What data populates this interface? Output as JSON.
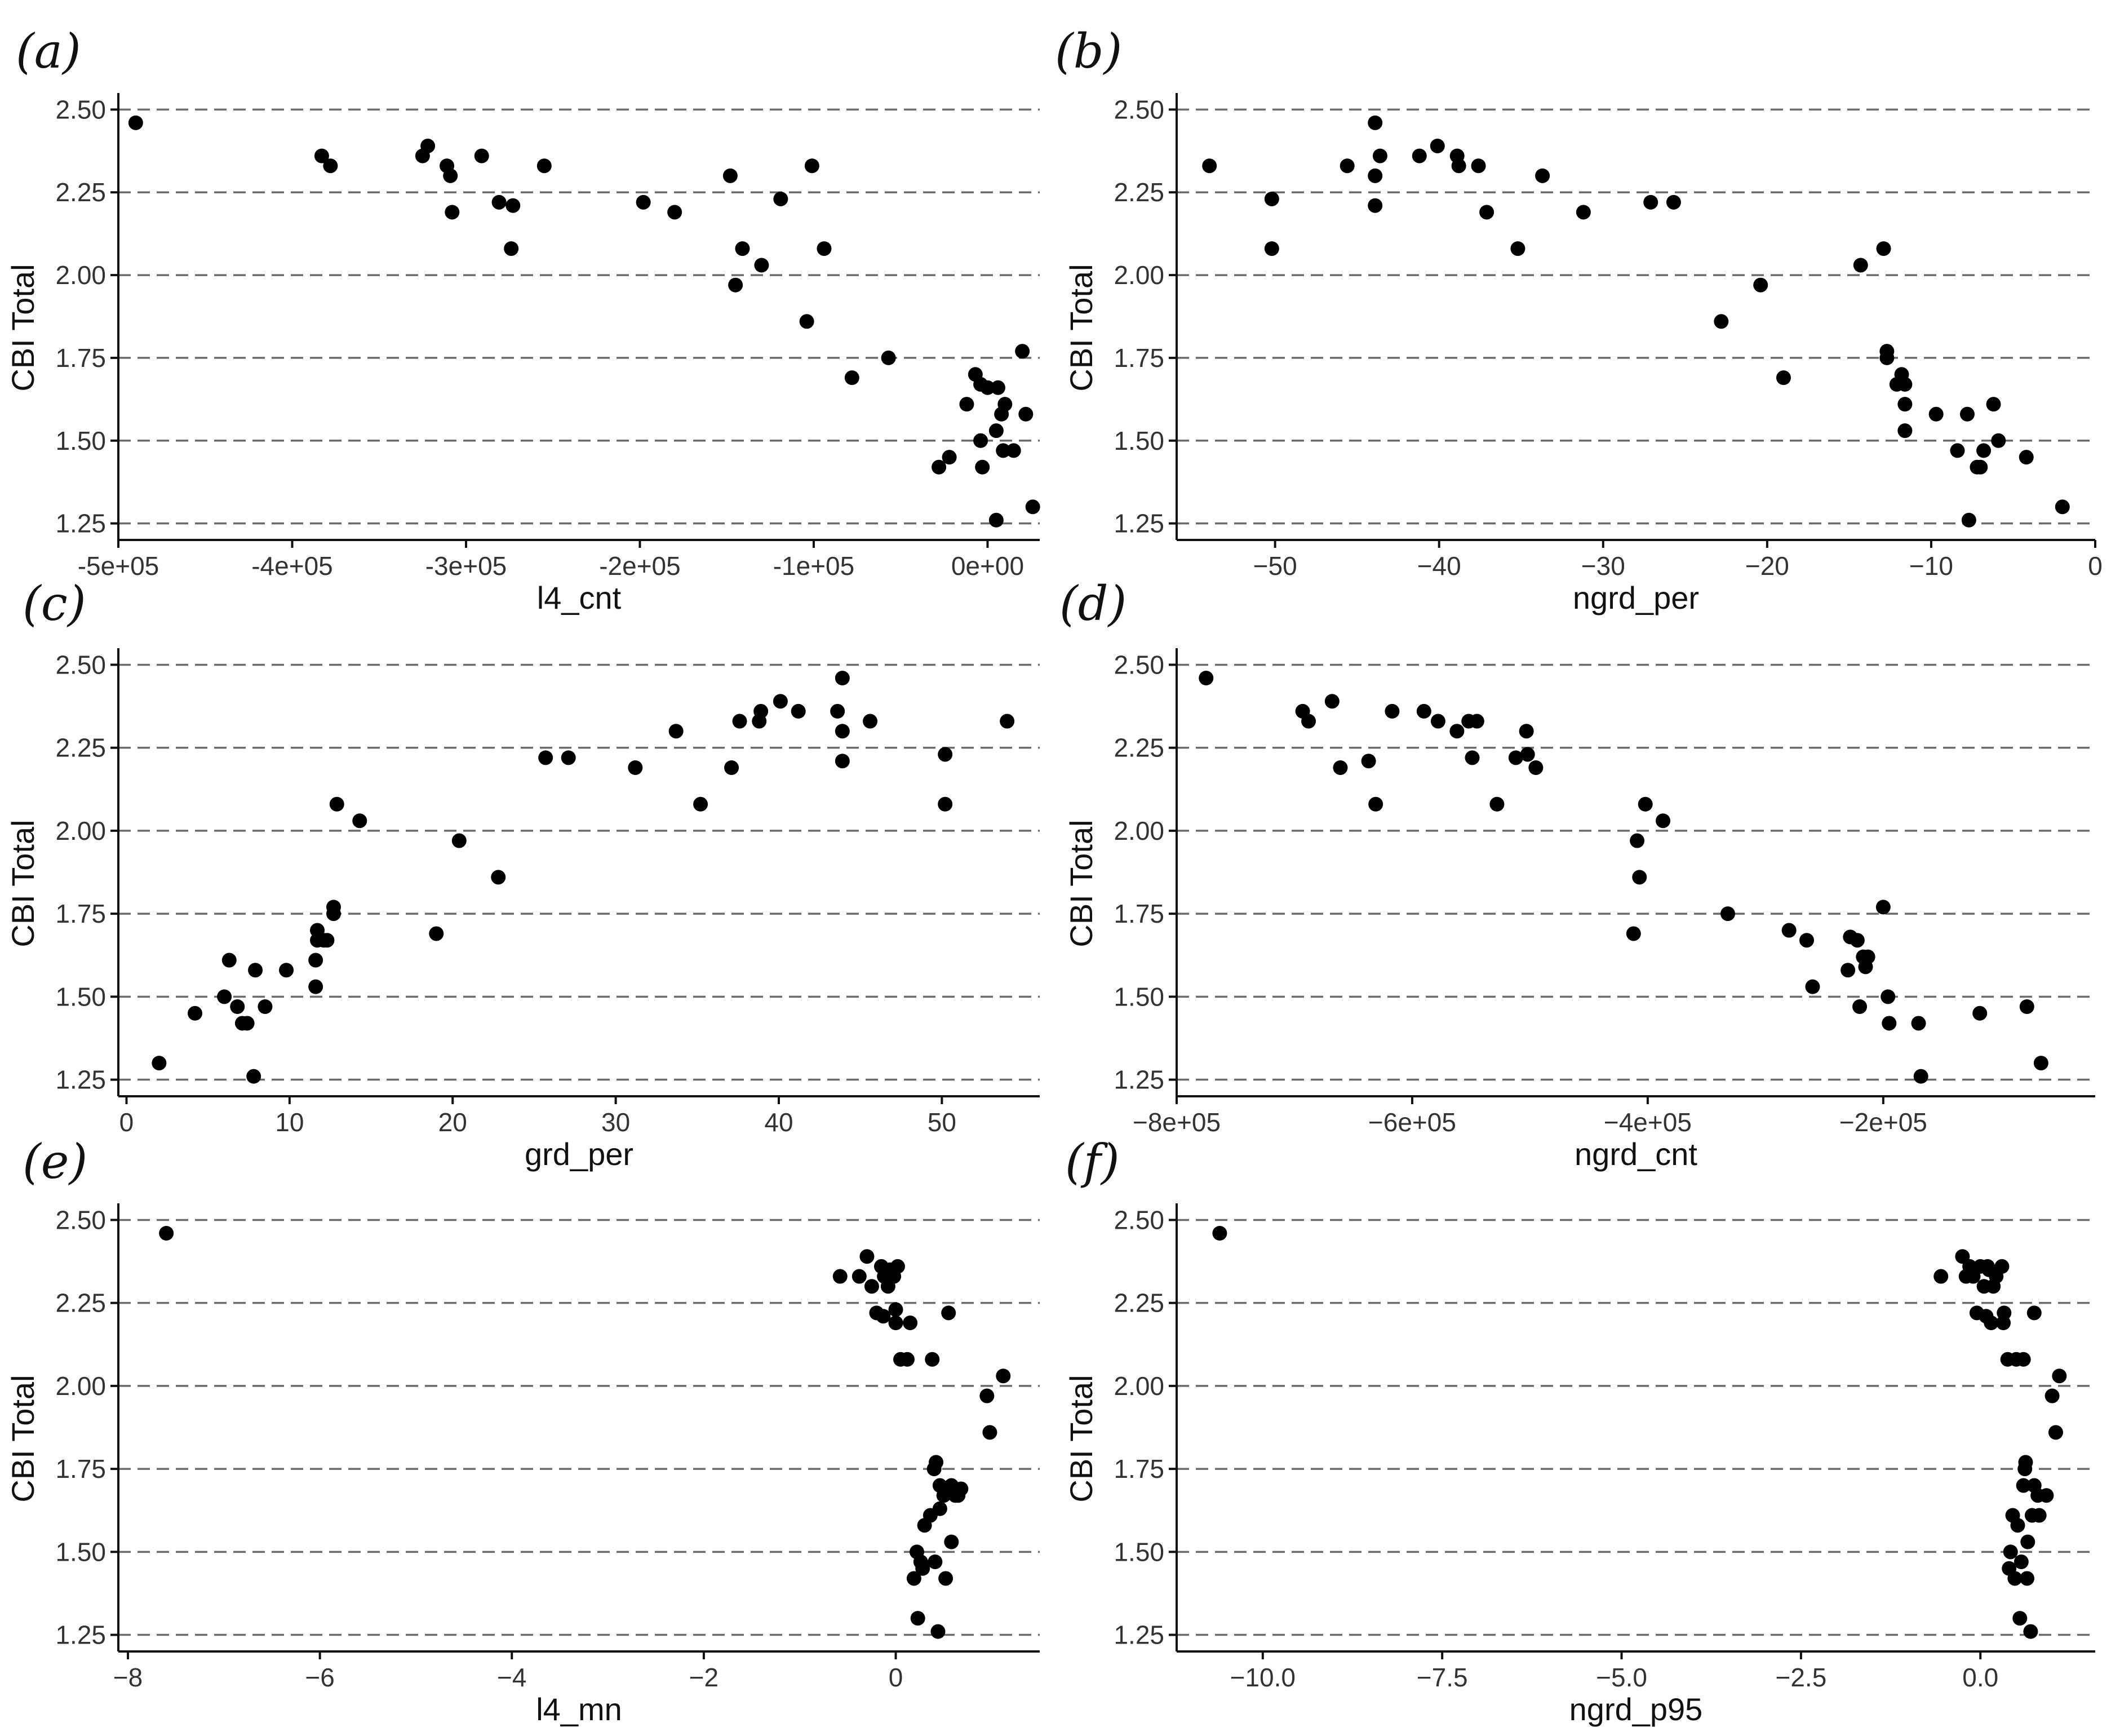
{
  "chart_data": [
    {
      "panel": "(a)",
      "type": "scatter",
      "xlabel": "l4_cnt",
      "ylabel": "CBI Total",
      "xlim": [
        -500000,
        30000
      ],
      "ylim": [
        1.25,
        2.5
      ],
      "grid": "horizontal dashed",
      "x_ticks": [
        -500000,
        -400000,
        -300000,
        -200000,
        -100000,
        0
      ],
      "x_tick_labels": [
        "-5e+05",
        "-4e+05",
        "-3e+05",
        "-2e+05",
        "-1e+05",
        "0e+00"
      ],
      "y_ticks": [
        1.25,
        1.5,
        1.75,
        2.0,
        2.25,
        2.5
      ],
      "y_tick_labels": [
        "1.25",
        "1.50",
        "1.75",
        "2.00",
        "2.25",
        "2.50"
      ],
      "points": [
        [
          -490000,
          2.46
        ],
        [
          -383000,
          2.36
        ],
        [
          -378000,
          2.33
        ],
        [
          -325000,
          2.36
        ],
        [
          -322000,
          2.39
        ],
        [
          -311000,
          2.33
        ],
        [
          -309000,
          2.3
        ],
        [
          -308000,
          2.19
        ],
        [
          -291000,
          2.36
        ],
        [
          -281000,
          2.22
        ],
        [
          -273000,
          2.21
        ],
        [
          -274000,
          2.08
        ],
        [
          -255000,
          2.33
        ],
        [
          -198000,
          2.22
        ],
        [
          -180000,
          2.19
        ],
        [
          -148000,
          2.3
        ],
        [
          -145000,
          1.97
        ],
        [
          -141000,
          2.08
        ],
        [
          -130000,
          2.03
        ],
        [
          -119000,
          2.23
        ],
        [
          -104000,
          1.86
        ],
        [
          -101000,
          2.33
        ],
        [
          -94000,
          2.08
        ],
        [
          -78000,
          1.69
        ],
        [
          -57000,
          1.75
        ],
        [
          -28000,
          1.42
        ],
        [
          -22000,
          1.45
        ],
        [
          -12000,
          1.61
        ],
        [
          -7000,
          1.7
        ],
        [
          -4000,
          1.67
        ],
        [
          -4000,
          1.5
        ],
        [
          -3000,
          1.42
        ],
        [
          0,
          1.66
        ],
        [
          5000,
          1.53
        ],
        [
          6000,
          1.66
        ],
        [
          8000,
          1.58
        ],
        [
          9000,
          1.47
        ],
        [
          10000,
          1.61
        ],
        [
          15000,
          1.47
        ],
        [
          20000,
          1.77
        ],
        [
          22000,
          1.58
        ],
        [
          26000,
          1.3
        ],
        [
          5000,
          1.26
        ]
      ]
    },
    {
      "panel": "(b)",
      "type": "scatter",
      "xlabel": "ngrd_per",
      "ylabel": "CBI Total",
      "xlim": [
        -56,
        0
      ],
      "ylim": [
        1.25,
        2.5
      ],
      "grid": "horizontal dashed",
      "x_ticks": [
        -50,
        -40,
        -30,
        -20,
        -10,
        0
      ],
      "x_tick_labels": [
        "−50",
        "−40",
        "−30",
        "−20",
        "−10",
        "0"
      ],
      "y_ticks": [
        1.25,
        1.5,
        1.75,
        2.0,
        2.25,
        2.5
      ],
      "y_tick_labels": [
        "1.25",
        "1.50",
        "1.75",
        "2.00",
        "2.25",
        "2.50"
      ],
      "points": [
        [
          -54,
          2.33
        ],
        [
          -50.2,
          2.23
        ],
        [
          -50.2,
          2.08
        ],
        [
          -45.6,
          2.33
        ],
        [
          -43.9,
          2.46
        ],
        [
          -43.9,
          2.3
        ],
        [
          -43.9,
          2.21
        ],
        [
          -43.6,
          2.36
        ],
        [
          -41.2,
          2.36
        ],
        [
          -40.1,
          2.39
        ],
        [
          -38.9,
          2.36
        ],
        [
          -38.8,
          2.33
        ],
        [
          -37.6,
          2.33
        ],
        [
          -37.1,
          2.19
        ],
        [
          -35.2,
          2.08
        ],
        [
          -33.7,
          2.3
        ],
        [
          -31.2,
          2.19
        ],
        [
          -27.1,
          2.22
        ],
        [
          -25.7,
          2.22
        ],
        [
          -22.8,
          1.86
        ],
        [
          -20.4,
          1.97
        ],
        [
          -19,
          1.69
        ],
        [
          -14.3,
          2.03
        ],
        [
          -12.9,
          2.08
        ],
        [
          -12.7,
          1.77
        ],
        [
          -12.7,
          1.75
        ],
        [
          -12.1,
          1.67
        ],
        [
          -11.8,
          1.7
        ],
        [
          -11.6,
          1.67
        ],
        [
          -11.6,
          1.61
        ],
        [
          -11.6,
          1.53
        ],
        [
          -9.7,
          1.58
        ],
        [
          -8.4,
          1.47
        ],
        [
          -7.8,
          1.58
        ],
        [
          -7.7,
          1.26
        ],
        [
          -7.2,
          1.42
        ],
        [
          -7.0,
          1.42
        ],
        [
          -6.8,
          1.47
        ],
        [
          -6.2,
          1.61
        ],
        [
          -5.9,
          1.5
        ],
        [
          -4.2,
          1.45
        ],
        [
          -2.0,
          1.3
        ]
      ]
    },
    {
      "panel": "(c)",
      "type": "scatter",
      "xlabel": "grd_per",
      "ylabel": "CBI Total",
      "xlim": [
        -0.5,
        56
      ],
      "ylim": [
        1.25,
        2.5
      ],
      "grid": "horizontal dashed",
      "x_ticks": [
        0,
        10,
        20,
        30,
        40,
        50
      ],
      "x_tick_labels": [
        "0",
        "10",
        "20",
        "30",
        "40",
        "50"
      ],
      "y_ticks": [
        1.25,
        1.5,
        1.75,
        2.0,
        2.25,
        2.5
      ],
      "y_tick_labels": [
        "1.25",
        "1.50",
        "1.75",
        "2.00",
        "2.25",
        "2.50"
      ],
      "points": [
        [
          2.0,
          1.3
        ],
        [
          4.2,
          1.45
        ],
        [
          6.0,
          1.5
        ],
        [
          6.3,
          1.61
        ],
        [
          6.8,
          1.47
        ],
        [
          7.1,
          1.42
        ],
        [
          7.4,
          1.42
        ],
        [
          7.8,
          1.26
        ],
        [
          7.9,
          1.58
        ],
        [
          8.5,
          1.47
        ],
        [
          9.8,
          1.58
        ],
        [
          11.6,
          1.53
        ],
        [
          11.6,
          1.61
        ],
        [
          11.7,
          1.7
        ],
        [
          11.7,
          1.67
        ],
        [
          12.1,
          1.67
        ],
        [
          12.3,
          1.67
        ],
        [
          12.7,
          1.77
        ],
        [
          12.7,
          1.75
        ],
        [
          12.9,
          2.08
        ],
        [
          14.3,
          2.03
        ],
        [
          19.0,
          1.69
        ],
        [
          20.4,
          1.97
        ],
        [
          22.8,
          1.86
        ],
        [
          25.7,
          2.22
        ],
        [
          27.1,
          2.22
        ],
        [
          31.2,
          2.19
        ],
        [
          33.7,
          2.3
        ],
        [
          35.2,
          2.08
        ],
        [
          37.1,
          2.19
        ],
        [
          37.6,
          2.33
        ],
        [
          38.8,
          2.33
        ],
        [
          38.9,
          2.36
        ],
        [
          40.1,
          2.39
        ],
        [
          41.2,
          2.36
        ],
        [
          43.6,
          2.36
        ],
        [
          43.9,
          2.46
        ],
        [
          43.9,
          2.3
        ],
        [
          43.9,
          2.21
        ],
        [
          45.6,
          2.33
        ],
        [
          50.2,
          2.23
        ],
        [
          50.2,
          2.08
        ],
        [
          54.0,
          2.33
        ]
      ]
    },
    {
      "panel": "(d)",
      "type": "scatter",
      "xlabel": "ngrd_cnt",
      "ylabel": "CBI Total",
      "xlim": [
        -800000,
        -20000
      ],
      "ylim": [
        1.25,
        2.5
      ],
      "grid": "horizontal dashed",
      "x_ticks": [
        -800000,
        -600000,
        -400000,
        -200000
      ],
      "x_tick_labels": [
        "−8e+05",
        "−6e+05",
        "−4e+05",
        "−2e+05"
      ],
      "y_ticks": [
        1.25,
        1.5,
        1.75,
        2.0,
        2.25,
        2.5
      ],
      "y_tick_labels": [
        "1.25",
        "1.50",
        "1.75",
        "2.00",
        "2.25",
        "2.50"
      ],
      "points": [
        [
          -775000,
          2.46
        ],
        [
          -693000,
          2.36
        ],
        [
          -688000,
          2.33
        ],
        [
          -668000,
          2.39
        ],
        [
          -661000,
          2.19
        ],
        [
          -637000,
          2.21
        ],
        [
          -631000,
          2.08
        ],
        [
          -617000,
          2.36
        ],
        [
          -590000,
          2.36
        ],
        [
          -578000,
          2.33
        ],
        [
          -562000,
          2.3
        ],
        [
          -552000,
          2.33
        ],
        [
          -549000,
          2.22
        ],
        [
          -545000,
          2.33
        ],
        [
          -528000,
          2.08
        ],
        [
          -512000,
          2.22
        ],
        [
          -503000,
          2.3
        ],
        [
          -502000,
          2.23
        ],
        [
          -495000,
          2.19
        ],
        [
          -412000,
          1.69
        ],
        [
          -409000,
          1.97
        ],
        [
          -407000,
          1.86
        ],
        [
          -402000,
          2.08
        ],
        [
          -387000,
          2.03
        ],
        [
          -332000,
          1.75
        ],
        [
          -280000,
          1.7
        ],
        [
          -265000,
          1.67
        ],
        [
          -260000,
          1.53
        ],
        [
          -230000,
          1.58
        ],
        [
          -228000,
          1.68
        ],
        [
          -222000,
          1.67
        ],
        [
          -220000,
          1.47
        ],
        [
          -217000,
          1.62
        ],
        [
          -215000,
          1.59
        ],
        [
          -213000,
          1.62
        ],
        [
          -200000,
          1.77
        ],
        [
          -196000,
          1.5
        ],
        [
          -195000,
          1.42
        ],
        [
          -170000,
          1.42
        ],
        [
          -168000,
          1.26
        ],
        [
          -118000,
          1.45
        ],
        [
          -78000,
          1.47
        ],
        [
          -66000,
          1.3
        ]
      ]
    },
    {
      "panel": "(e)",
      "type": "scatter",
      "xlabel": "l4_mn",
      "ylabel": "CBI Total",
      "xlim": [
        -8.1,
        1.5
      ],
      "ylim": [
        1.25,
        2.5
      ],
      "grid": "horizontal dashed",
      "x_ticks": [
        -8,
        -6,
        -4,
        -2,
        0
      ],
      "x_tick_labels": [
        "−8",
        "−6",
        "−4",
        "−2",
        "0"
      ],
      "y_ticks": [
        1.25,
        1.5,
        1.75,
        2.0,
        2.25,
        2.5
      ],
      "y_tick_labels": [
        "1.25",
        "1.50",
        "1.75",
        "2.00",
        "2.25",
        "2.50"
      ],
      "points": [
        [
          -7.6,
          2.46
        ],
        [
          -0.58,
          2.33
        ],
        [
          -0.38,
          2.33
        ],
        [
          -0.3,
          2.39
        ],
        [
          -0.25,
          2.3
        ],
        [
          -0.2,
          2.22
        ],
        [
          -0.15,
          2.36
        ],
        [
          -0.13,
          2.21
        ],
        [
          -0.12,
          2.33
        ],
        [
          -0.08,
          2.3
        ],
        [
          -0.06,
          2.35
        ],
        [
          -0.02,
          2.33
        ],
        [
          0.0,
          2.19
        ],
        [
          0.0,
          2.23
        ],
        [
          0.02,
          2.36
        ],
        [
          0.05,
          2.08
        ],
        [
          0.12,
          2.08
        ],
        [
          0.15,
          2.19
        ],
        [
          0.19,
          1.42
        ],
        [
          0.22,
          1.5
        ],
        [
          0.23,
          1.3
        ],
        [
          0.26,
          1.47
        ],
        [
          0.28,
          1.45
        ],
        [
          0.3,
          1.58
        ],
        [
          0.36,
          1.61
        ],
        [
          0.38,
          2.08
        ],
        [
          0.4,
          1.75
        ],
        [
          0.41,
          1.47
        ],
        [
          0.42,
          1.77
        ],
        [
          0.44,
          1.26
        ],
        [
          0.46,
          1.7
        ],
        [
          0.46,
          1.63
        ],
        [
          0.5,
          1.67
        ],
        [
          0.52,
          1.42
        ],
        [
          0.55,
          2.22
        ],
        [
          0.58,
          1.53
        ],
        [
          0.58,
          1.7
        ],
        [
          0.62,
          1.67
        ],
        [
          0.65,
          1.67
        ],
        [
          0.68,
          1.69
        ],
        [
          0.95,
          1.97
        ],
        [
          0.98,
          1.86
        ],
        [
          1.12,
          2.03
        ]
      ]
    },
    {
      "panel": "(f)",
      "type": "scatter",
      "xlabel": "ngrd_p95",
      "ylabel": "CBI Total",
      "xlim": [
        -11.2,
        1.6
      ],
      "ylim": [
        1.25,
        2.5
      ],
      "grid": "horizontal dashed",
      "x_ticks": [
        -10,
        -7.5,
        -5,
        -2.5,
        0
      ],
      "x_tick_labels": [
        "−10.0",
        "−7.5",
        "−5.0",
        "−2.5",
        "0.0"
      ],
      "y_ticks": [
        1.25,
        1.5,
        1.75,
        2.0,
        2.25,
        2.5
      ],
      "y_tick_labels": [
        "1.25",
        "1.50",
        "1.75",
        "2.00",
        "2.25",
        "2.50"
      ],
      "points": [
        [
          -10.6,
          2.46
        ],
        [
          -0.55,
          2.33
        ],
        [
          -0.25,
          2.39
        ],
        [
          -0.2,
          2.33
        ],
        [
          -0.15,
          2.36
        ],
        [
          -0.1,
          2.33
        ],
        [
          -0.05,
          2.22
        ],
        [
          0.0,
          2.36
        ],
        [
          0.05,
          2.3
        ],
        [
          0.08,
          2.21
        ],
        [
          0.1,
          2.36
        ],
        [
          0.12,
          2.35
        ],
        [
          0.15,
          2.19
        ],
        [
          0.18,
          2.3
        ],
        [
          0.22,
          2.33
        ],
        [
          0.3,
          2.36
        ],
        [
          0.32,
          2.19
        ],
        [
          0.33,
          2.22
        ],
        [
          0.38,
          2.08
        ],
        [
          0.4,
          1.45
        ],
        [
          0.42,
          1.5
        ],
        [
          0.45,
          1.61
        ],
        [
          0.48,
          1.42
        ],
        [
          0.5,
          2.08
        ],
        [
          0.52,
          1.58
        ],
        [
          0.55,
          1.3
        ],
        [
          0.57,
          1.47
        ],
        [
          0.6,
          2.08
        ],
        [
          0.6,
          1.7
        ],
        [
          0.62,
          1.75
        ],
        [
          0.63,
          1.77
        ],
        [
          0.65,
          1.42
        ],
        [
          0.66,
          1.53
        ],
        [
          0.7,
          1.26
        ],
        [
          0.72,
          1.61
        ],
        [
          0.75,
          1.7
        ],
        [
          0.75,
          2.22
        ],
        [
          0.8,
          1.67
        ],
        [
          0.82,
          1.61
        ],
        [
          0.92,
          1.67
        ],
        [
          1.0,
          1.97
        ],
        [
          1.05,
          1.86
        ],
        [
          1.1,
          2.03
        ]
      ]
    }
  ]
}
